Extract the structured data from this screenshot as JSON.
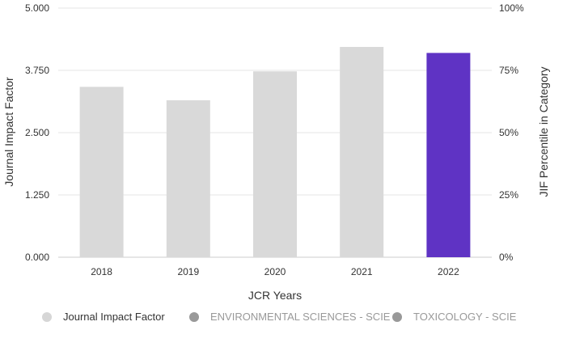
{
  "chart_data": {
    "type": "bar",
    "categories": [
      "2018",
      "2019",
      "2020",
      "2021",
      "2022"
    ],
    "values": [
      3.42,
      3.15,
      3.73,
      4.22,
      4.1
    ],
    "highlight_category": "2022",
    "xlabel": "JCR Years",
    "ylabel": "Journal Impact Factor",
    "y2label": "JIF Percentile in Category",
    "ylim": [
      0,
      5
    ],
    "y_ticks": [
      "0.000",
      "1.250",
      "2.500",
      "3.750",
      "5.000"
    ],
    "y2_ticks": [
      "0%",
      "25%",
      "50%",
      "75%",
      "100%"
    ],
    "grid": true,
    "legend": [
      {
        "label": "Journal Impact Factor",
        "color": "#d6d6d6",
        "active": true
      },
      {
        "label": "ENVIRONMENTAL SCIENCES - SCIE",
        "color": "#999999",
        "active": false
      },
      {
        "label": "TOXICOLOGY - SCIE",
        "color": "#999999",
        "active": false
      }
    ],
    "colors": {
      "bar": "#d9d9d9",
      "highlight": "#5f33c4",
      "grid": "#e6e6e6",
      "text_active": "#333333",
      "text_inactive": "#999999"
    }
  }
}
